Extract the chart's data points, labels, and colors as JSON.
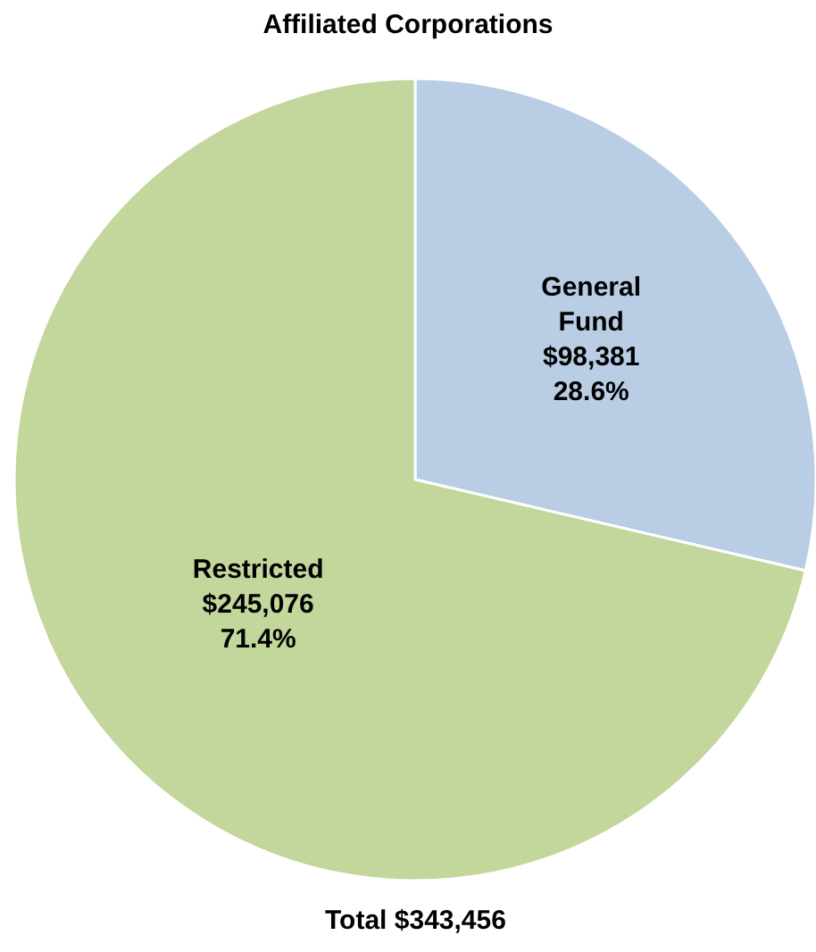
{
  "chart_data": {
    "type": "pie",
    "title": "Affiliated Corporations",
    "categories": [
      "General Fund",
      "Restricted"
    ],
    "values": [
      98381,
      245076
    ],
    "colors": [
      "#b9cde5",
      "#c3d69b"
    ],
    "value_labels": [
      "$98,381\n28.6%",
      "$245,076\n71.4%"
    ],
    "annotations": [
      "Total $343,456"
    ],
    "legend": false
  }
}
